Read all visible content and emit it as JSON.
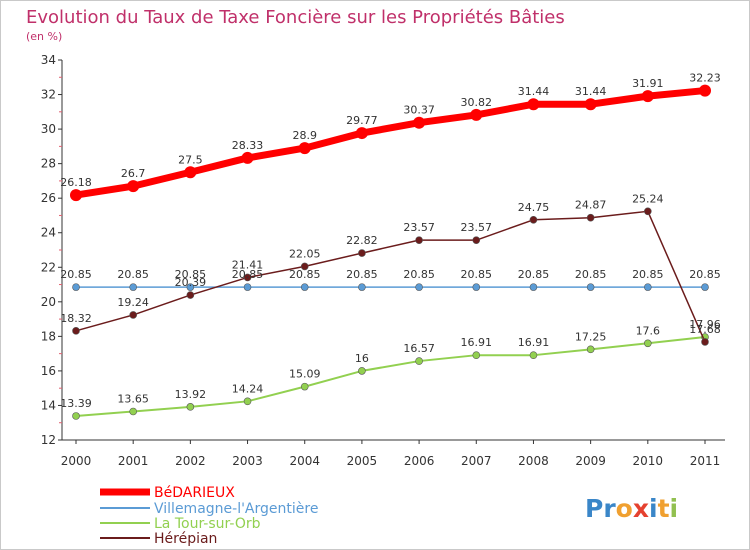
{
  "chart_data": {
    "type": "line",
    "title": "Evolution du Taux de Taxe Foncière sur les Propriétés Bâties",
    "subtitle": "(en %)",
    "x": [
      "2000",
      "2001",
      "2002",
      "2003",
      "2004",
      "2005",
      "2006",
      "2007",
      "2008",
      "2009",
      "2010",
      "2011"
    ],
    "ylim": [
      12,
      34
    ],
    "yticks": [
      12,
      14,
      16,
      18,
      20,
      22,
      24,
      26,
      28,
      30,
      32,
      34
    ],
    "grid": false,
    "legend_position": "bottom-left",
    "series": [
      {
        "name": "BéDARIEUX",
        "color": "#ff0000",
        "values": [
          26.18,
          26.7,
          27.5,
          28.33,
          28.9,
          29.77,
          30.37,
          30.82,
          31.44,
          31.44,
          31.91,
          32.23
        ],
        "labels": [
          "26.18",
          "26.7",
          "27.5",
          "28.33",
          "28.9",
          "29.77",
          "30.37",
          "30.82",
          "31.44",
          "31.44",
          "31.91",
          "32.23"
        ]
      },
      {
        "name": "Villemagne-l'Argentière",
        "color": "#5b9bd5",
        "values": [
          20.85,
          20.85,
          20.85,
          20.85,
          20.85,
          20.85,
          20.85,
          20.85,
          20.85,
          20.85,
          20.85,
          20.85
        ],
        "labels": [
          "20.85",
          "20.85",
          "20.85",
          "20.85",
          "20.85",
          "20.85",
          "20.85",
          "20.85",
          "20.85",
          "20.85",
          "20.85",
          "20.85"
        ]
      },
      {
        "name": "La Tour-sur-Orb",
        "color": "#92d050",
        "values": [
          13.39,
          13.65,
          13.92,
          14.24,
          15.09,
          16,
          16.57,
          16.91,
          16.91,
          17.25,
          17.6,
          17.96
        ],
        "labels": [
          "13.39",
          "13.65",
          "13.92",
          "14.24",
          "15.09",
          "16",
          "16.57",
          "16.91",
          "16.91",
          "17.25",
          "17.6",
          "17.96"
        ]
      },
      {
        "name": "Hérépian",
        "color": "#6b1c1c",
        "values": [
          18.32,
          19.24,
          20.39,
          21.41,
          22.05,
          22.82,
          23.57,
          23.57,
          24.75,
          24.87,
          25.24,
          17.68
        ],
        "labels": [
          "18.32",
          "19.24",
          "20.39",
          "21.41",
          "22.05",
          "22.82",
          "23.57",
          "23.57",
          "24.75",
          "24.87",
          "25.24",
          "17.68"
        ]
      }
    ]
  },
  "colors": {
    "title": "#c0306a",
    "axis": "#333333",
    "tick_marks": "#e06070"
  },
  "logo": {
    "text": "Proxiti"
  }
}
